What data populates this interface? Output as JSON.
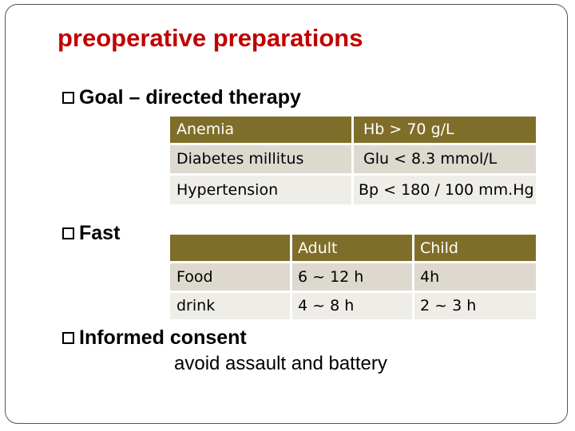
{
  "title": "preoperative preparations",
  "bullets": {
    "goal": "Goal – directed therapy",
    "fast": "Fast",
    "consent": "Informed consent",
    "consent_detail": "avoid assault and battery"
  },
  "goal_table": {
    "rows": [
      {
        "condition": "Anemia",
        "target": "Hb > 70 g/L"
      },
      {
        "condition": "Diabetes millitus",
        "target": "Glu < 8.3 mmol/L"
      },
      {
        "condition": "Hypertension",
        "target": "Bp < 180 / 100 mm.Hg"
      }
    ]
  },
  "fast_table": {
    "headers": [
      "",
      "Adult",
      "Child"
    ],
    "rows": [
      {
        "item": "Food",
        "adult": "6 ~ 12 h",
        "child": "4h"
      },
      {
        "item": "drink",
        "adult": "4 ~ 8 h",
        "child": "2 ~ 3 h"
      }
    ]
  },
  "colors": {
    "title": "#c00000",
    "header_row": "#7f6e2a",
    "row_band": "#ddd9cf"
  }
}
